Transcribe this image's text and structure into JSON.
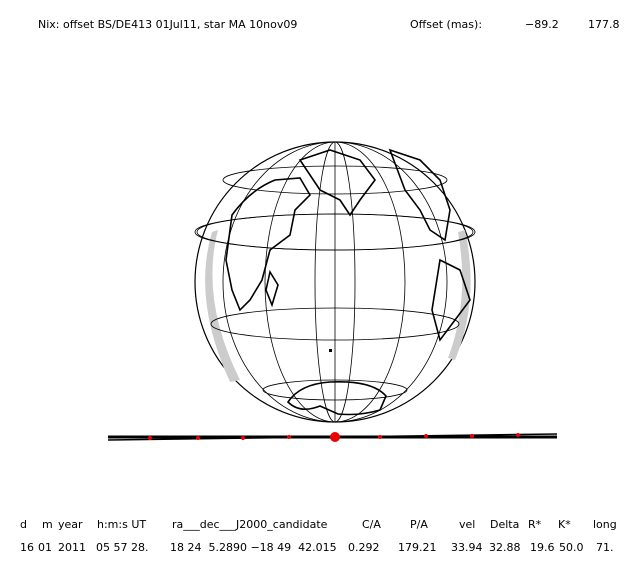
{
  "header": {
    "title": "Nix: offset BS/DE413 01Jul11, star MA 10nov09",
    "offset_label": "Offset (mas):",
    "offset_values": [
      "−89.2",
      "177.8"
    ]
  },
  "table": {
    "columns": [
      "d",
      "m",
      "year",
      "h:m:s UT",
      "ra___dec___J2000_candidate",
      "C/A",
      "P/A",
      "vel",
      "Delta",
      "R*",
      "K*",
      "long"
    ],
    "rows": [
      [
        "16",
        "01",
        "2011",
        "05 57 28.",
        "18 24  5.2890 −18 49  42.015",
        "0.292",
        "179.21",
        "33.94",
        "32.88",
        "19.6",
        "50.0",
        "71."
      ]
    ]
  }
}
